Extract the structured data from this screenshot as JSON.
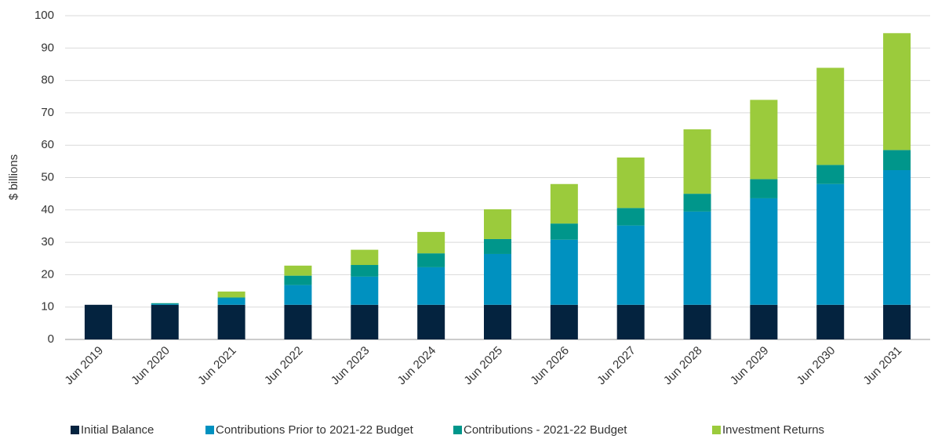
{
  "chart_data": {
    "type": "stacked_bar",
    "y_label": "$ billions",
    "categories": [
      "Jun 2019",
      "Jun 2020",
      "Jun 2021",
      "Jun 2022",
      "Jun 2023",
      "Jun 2024",
      "Jun 2025",
      "Jun 2026",
      "Jun 2027",
      "Jun 2028",
      "Jun 2029",
      "Jun 2030",
      "Jun 2031"
    ],
    "series": [
      {
        "name": "Initial Balance",
        "color": "#04233f",
        "values": [
          10.7,
          10.7,
          10.7,
          10.7,
          10.7,
          10.7,
          10.7,
          10.7,
          10.7,
          10.7,
          10.7,
          10.7,
          10.7
        ]
      },
      {
        "name": "Contributions Prior to 2021-22 Budget",
        "color": "#0091c0",
        "values": [
          0,
          0.2,
          2.0,
          6.1,
          8.7,
          11.6,
          15.7,
          20.1,
          24.5,
          28.8,
          32.9,
          37.3,
          41.6
        ]
      },
      {
        "name": "Contributions - 2021-22 Budget",
        "color": "#00968b",
        "values": [
          0,
          0.3,
          0.3,
          2.9,
          3.6,
          4.3,
          4.6,
          5.0,
          5.4,
          5.5,
          5.9,
          5.9,
          6.2
        ]
      },
      {
        "name": "Investment Returns",
        "color": "#9bcb3c",
        "values": [
          0,
          0,
          1.8,
          3.1,
          4.7,
          6.6,
          9.2,
          12.2,
          15.6,
          19.9,
          24.5,
          30.0,
          36.1
        ]
      }
    ],
    "ylim": [
      0,
      100
    ],
    "yticks": [
      0,
      10,
      20,
      30,
      40,
      50,
      60,
      70,
      80,
      90,
      100
    ],
    "grid": true
  }
}
